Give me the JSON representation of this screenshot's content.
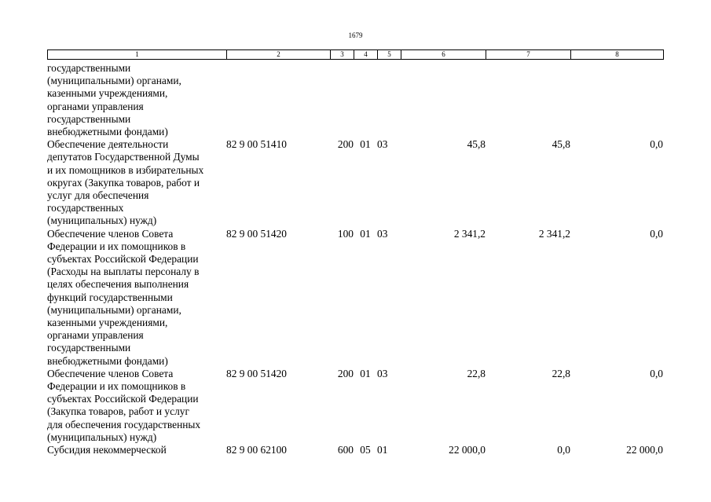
{
  "page_number": "1679",
  "columns": [
    "1",
    "2",
    "3",
    "4",
    "5",
    "6",
    "7",
    "8"
  ],
  "rows": [
    {
      "lines": [
        "государственными",
        "(муниципальными) органами,",
        "казенными учреждениями,",
        "органами управления",
        "государственными",
        "внебюджетными фондами)"
      ],
      "code": "",
      "c3": "",
      "c4": "",
      "c5": "",
      "v6": "",
      "v7": "",
      "v8": ""
    },
    {
      "lines": [
        "Обеспечение деятельности",
        "депутатов Государственной Думы",
        "и их помощников в избирательных",
        "округах (Закупка товаров, работ и",
        "услуг для обеспечения",
        "государственных",
        "(муниципальных) нужд)"
      ],
      "code": "82 9 00 51410",
      "c3": "200",
      "c4": "01",
      "c5": "03",
      "v6": "45,8",
      "v7": "45,8",
      "v8": "0,0"
    },
    {
      "lines": [
        "Обеспечение членов Совета",
        "Федерации и их помощников в",
        "субъектах Российской Федерации",
        "(Расходы на выплаты персоналу в",
        "целях обеспечения выполнения",
        "функций государственными",
        "(муниципальными) органами,",
        "казенными учреждениями,",
        "органами управления",
        "государственными",
        "внебюджетными фондами)"
      ],
      "code": "82 9 00 51420",
      "c3": "100",
      "c4": "01",
      "c5": "03",
      "v6": "2 341,2",
      "v7": "2 341,2",
      "v8": "0,0"
    },
    {
      "lines": [
        "Обеспечение членов Совета",
        "Федерации и их помощников в",
        "субъектах Российской Федерации",
        "(Закупка товаров, работ и услуг",
        "для обеспечения государственных",
        "(муниципальных) нужд)"
      ],
      "code": "82 9 00 51420",
      "c3": "200",
      "c4": "01",
      "c5": "03",
      "v6": "22,8",
      "v7": "22,8",
      "v8": "0,0"
    },
    {
      "lines": [
        "Субсидия некоммерческой"
      ],
      "code": "82 9 00 62100",
      "c3": "600",
      "c4": "05",
      "c5": "01",
      "v6": "22 000,0",
      "v7": "0,0",
      "v8": "22 000,0"
    }
  ]
}
